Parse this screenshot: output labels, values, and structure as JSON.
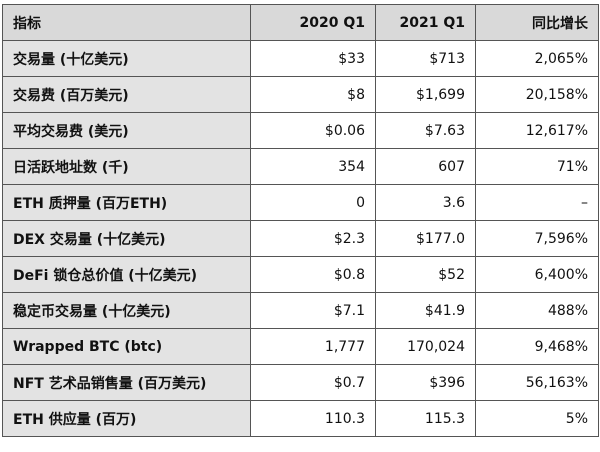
{
  "table": {
    "header": [
      "指标",
      "2020 Q1",
      "2021 Q1",
      "同比增长"
    ],
    "rows": [
      [
        "交易量 (十亿美元)",
        "$33",
        "$713",
        "2,065%"
      ],
      [
        "交易费 (百万美元)",
        "$8",
        "$1,699",
        "20,158%"
      ],
      [
        "平均交易费 (美元)",
        "$0.06",
        "$7.63",
        "12,617%"
      ],
      [
        "日活跃地址数 (千)",
        "354",
        "607",
        "71%"
      ],
      [
        "ETH 质押量 (百万ETH)",
        "0",
        "3.6",
        "–"
      ],
      [
        "DEX 交易量 (十亿美元)",
        "$2.3",
        "$177.0",
        "7,596%"
      ],
      [
        "DeFi 锁仓总价值 (十亿美元)",
        "$0.8",
        "$52",
        "6,400%"
      ],
      [
        "稳定币交易量 (十亿美元)",
        "$7.1",
        "$41.9",
        "488%"
      ],
      [
        "Wrapped BTC (btc)",
        "1,777",
        "170,024",
        "9,468%"
      ],
      [
        "NFT 艺术品销售量 (百万美元)",
        "$0.7",
        "$396",
        "56,163%"
      ],
      [
        "ETH 供应量 (百万)",
        "110.3",
        "115.3",
        "5%"
      ]
    ]
  }
}
